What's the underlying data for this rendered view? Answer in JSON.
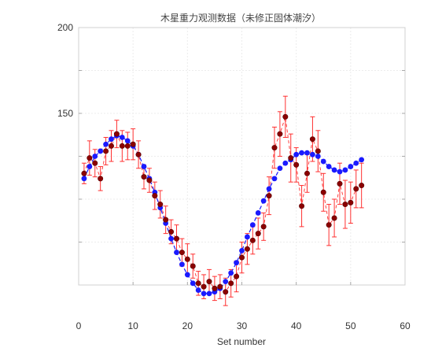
{
  "chart_data": {
    "type": "scatter",
    "title": "木星重力观测数据（未修正固体潮汐）",
    "xlabel": "Set number",
    "ylabel": "",
    "xlim": [
      0,
      60
    ],
    "ylim": [
      50,
      200
    ],
    "xticks": [
      0,
      10,
      20,
      30,
      40,
      50,
      60
    ],
    "yticks": [
      150,
      200
    ],
    "grid": true,
    "colors": {
      "observed": "#8b0000",
      "error_bar": "#ff3030",
      "model": "#1a1aff"
    },
    "series": [
      {
        "kind": "observed-with-errorbars",
        "x": [
          1,
          2,
          3,
          4,
          5,
          6,
          7,
          8,
          9,
          10,
          11,
          12,
          13,
          14,
          15,
          16,
          17,
          18,
          19,
          20,
          21,
          22,
          23,
          24,
          25,
          26,
          27,
          28,
          29,
          30,
          31,
          32,
          33,
          34,
          35,
          36,
          37,
          38,
          39,
          40,
          41,
          42,
          43,
          44,
          45,
          46,
          47,
          48,
          49,
          50,
          51,
          52
        ],
        "y": [
          115,
          124,
          121,
          112,
          128,
          131,
          138,
          131,
          131,
          132,
          126,
          113,
          111,
          102,
          97,
          88,
          81,
          77,
          69,
          65,
          61,
          51,
          49,
          52,
          48,
          49,
          46,
          51,
          55,
          66,
          71,
          76,
          80,
          84,
          102,
          130,
          138,
          148,
          124,
          120,
          96,
          115,
          135,
          128,
          104,
          85,
          89,
          109,
          97,
          98,
          106,
          108
        ],
        "error": [
          6,
          10,
          8,
          7,
          8,
          9,
          8,
          9,
          8,
          9,
          8,
          7,
          7,
          8,
          8,
          8,
          7,
          8,
          8,
          9,
          7,
          7,
          7,
          7,
          7,
          7,
          8,
          8,
          9,
          9,
          9,
          8,
          9,
          8,
          11,
          12,
          13,
          12,
          14,
          10,
          12,
          11,
          13,
          12,
          11,
          12,
          11,
          12,
          14,
          12,
          11,
          13
        ]
      },
      {
        "kind": "model",
        "x": [
          1,
          2,
          3,
          4,
          5,
          6,
          7,
          8,
          9,
          10,
          11,
          12,
          13,
          14,
          15,
          16,
          17,
          18,
          19,
          20,
          21,
          22,
          23,
          24,
          25,
          26,
          27,
          28,
          29,
          30,
          31,
          32,
          33,
          34,
          35,
          36,
          37,
          38,
          39,
          40,
          41,
          42,
          43,
          44,
          45,
          46,
          47,
          48,
          49,
          50,
          51,
          52
        ],
        "y": [
          112,
          119,
          125,
          128,
          132,
          135,
          137,
          136,
          134,
          131,
          126,
          119,
          112,
          104,
          95,
          86,
          77,
          69,
          62,
          56,
          51,
          47,
          45,
          45,
          46,
          48,
          52,
          57,
          63,
          70,
          78,
          85,
          92,
          99,
          106,
          112,
          118,
          121,
          123,
          126,
          127,
          127,
          126,
          125,
          122,
          119,
          117,
          116,
          117,
          119,
          121,
          123
        ]
      }
    ]
  }
}
